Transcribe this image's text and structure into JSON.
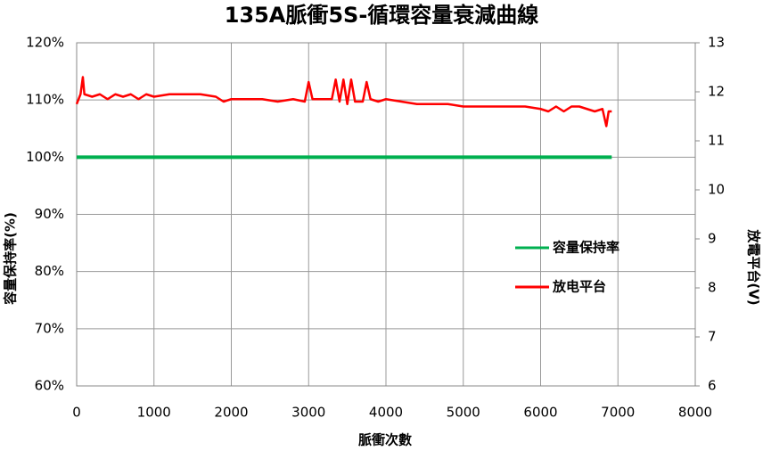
{
  "chart_data": {
    "type": "line",
    "title": "135A脈衝5S-循環容量衰減曲線",
    "x_label": "脈衝次數",
    "y_label": "容量保持率(%)",
    "y2_label": "放電平台(V)",
    "xlim": [
      0,
      8000
    ],
    "xticks": [
      0,
      1000,
      2000,
      3000,
      4000,
      5000,
      6000,
      7000,
      8000
    ],
    "ylim": [
      60,
      120
    ],
    "yticks": [
      {
        "value": 60,
        "label": "60%"
      },
      {
        "value": 70,
        "label": "70%"
      },
      {
        "value": 80,
        "label": "80%"
      },
      {
        "value": 90,
        "label": "90%"
      },
      {
        "value": 100,
        "label": "100%"
      },
      {
        "value": 110,
        "label": "110%"
      },
      {
        "value": 120,
        "label": "120%"
      }
    ],
    "y2lim": [
      6,
      13
    ],
    "y2ticks": [
      6,
      7,
      8,
      9,
      10,
      11,
      12,
      13
    ],
    "grid": true,
    "legend_position": "right",
    "series": [
      {
        "name": "容量保持率",
        "color": "#00b050",
        "axis": "y",
        "x": [
          0,
          6920
        ],
        "values": [
          100,
          100
        ]
      },
      {
        "name": "放电平台",
        "color": "#ff0000",
        "axis": "y2",
        "x": [
          0,
          50,
          80,
          100,
          200,
          300,
          400,
          500,
          600,
          700,
          800,
          900,
          1000,
          1200,
          1400,
          1600,
          1800,
          1900,
          2000,
          2200,
          2400,
          2600,
          2800,
          2950,
          3000,
          3050,
          3200,
          3300,
          3350,
          3400,
          3450,
          3500,
          3550,
          3600,
          3700,
          3750,
          3800,
          3900,
          4000,
          4200,
          4400,
          4600,
          4800,
          5000,
          5200,
          5400,
          5600,
          5800,
          6000,
          6100,
          6200,
          6300,
          6400,
          6500,
          6600,
          6700,
          6800,
          6850,
          6880,
          6920
        ],
        "values": [
          11.75,
          11.95,
          12.3,
          11.95,
          11.9,
          11.95,
          11.85,
          11.95,
          11.9,
          11.95,
          11.85,
          11.95,
          11.9,
          11.95,
          11.95,
          11.95,
          11.9,
          11.8,
          11.85,
          11.85,
          11.85,
          11.8,
          11.85,
          11.8,
          12.2,
          11.85,
          11.85,
          11.85,
          12.25,
          11.8,
          12.25,
          11.75,
          12.25,
          11.8,
          11.8,
          12.2,
          11.85,
          11.8,
          11.85,
          11.8,
          11.75,
          11.75,
          11.75,
          11.7,
          11.7,
          11.7,
          11.7,
          11.7,
          11.65,
          11.6,
          11.7,
          11.6,
          11.7,
          11.7,
          11.65,
          11.6,
          11.65,
          11.3,
          11.6,
          11.6
        ]
      }
    ]
  }
}
